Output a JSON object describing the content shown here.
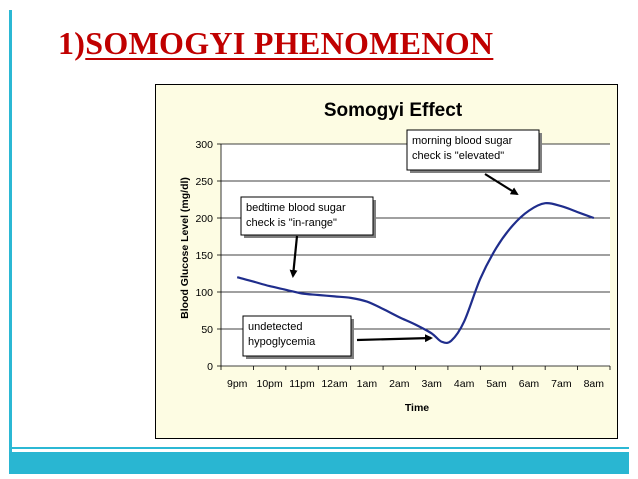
{
  "slide": {
    "title_number": "1)",
    "title_text": "SOMOGYI PHENOMENON"
  },
  "colors": {
    "title": "#c00000",
    "frame_accent": "#2bb8d4",
    "chart_area_bg": "#fdfce3",
    "plot_area_bg": "#ffffff",
    "series_line": "#1f2d8c",
    "grid": "#000000"
  },
  "chart_data": {
    "type": "line",
    "title": "Somogyi Effect",
    "xlabel": "Time",
    "ylabel": "Blood Glucose Level (mg/dl)",
    "categories": [
      "9pm",
      "10pm",
      "11pm",
      "12am",
      "1am",
      "2am",
      "3am",
      "4am",
      "5am",
      "6am",
      "7am",
      "8am"
    ],
    "ylim": [
      0,
      300
    ],
    "yticks": [
      0,
      50,
      100,
      150,
      200,
      250,
      300
    ],
    "grid": true,
    "legend": "none",
    "series": [
      {
        "x": [
          0,
          0.5,
          1,
          1.5,
          2,
          2.5,
          3,
          3.5,
          4,
          4.5,
          5,
          5.5,
          6,
          6.3,
          6.6,
          7,
          7.5,
          8,
          8.5,
          9,
          9.5,
          10,
          10.5,
          11
        ],
        "values": [
          120,
          114,
          108,
          103,
          98,
          96,
          94,
          92,
          87,
          77,
          66,
          56,
          44,
          33,
          34,
          60,
          118,
          160,
          190,
          210,
          220,
          216,
          208,
          200
        ]
      }
    ],
    "annotations": [
      {
        "lines": [
          "bedtime blood sugar",
          "check is \"in-range\""
        ]
      },
      {
        "lines": [
          "morning blood sugar",
          "check is \"elevated\""
        ]
      },
      {
        "lines": [
          "undetected",
          "hypoglycemia"
        ]
      }
    ]
  }
}
